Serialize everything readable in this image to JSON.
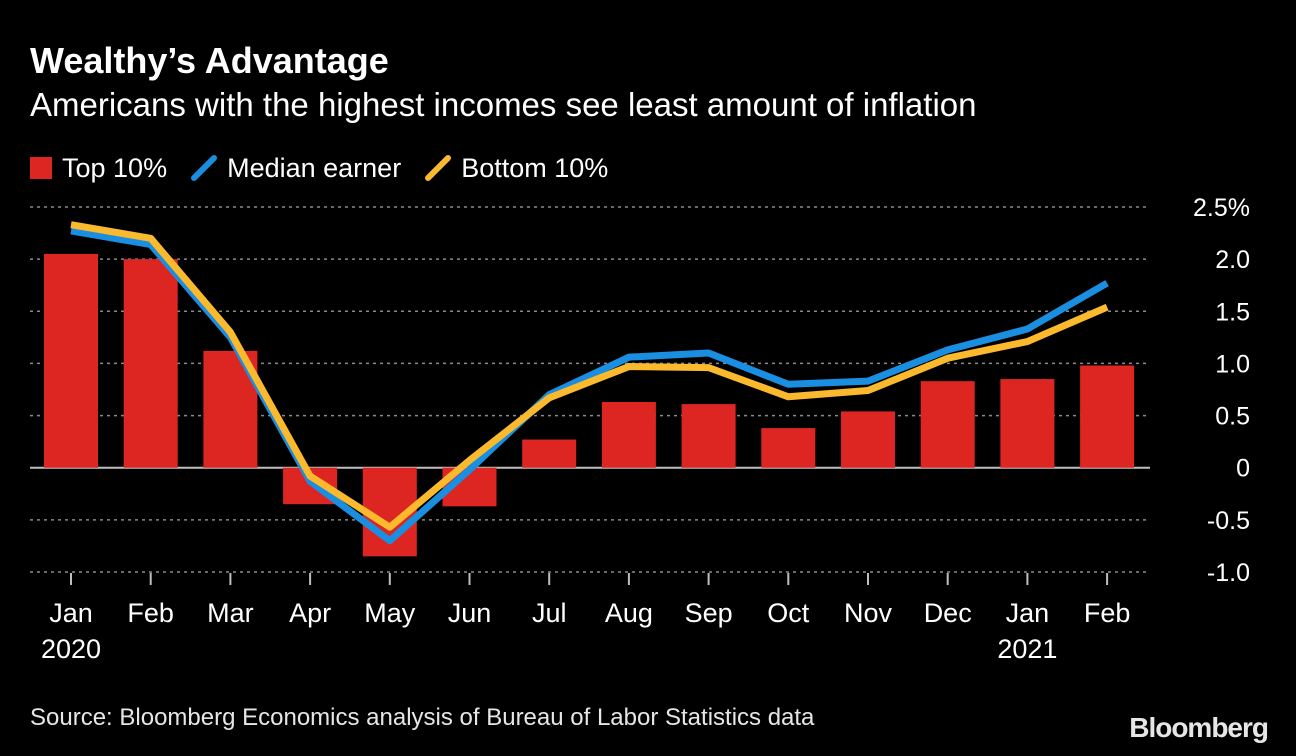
{
  "title": "Wealthy’s Advantage",
  "subtitle": "Americans with the highest incomes see least amount of inflation",
  "source": "Source: Bloomberg Economics analysis of Bureau of Labor Statistics data",
  "brand": "Bloomberg",
  "colors": {
    "background": "#000000",
    "top10": "#dd2622",
    "median": "#1a8ee0",
    "bottom10": "#fbb92e",
    "grid": "#8a8a8a"
  },
  "legend": [
    {
      "label": "Top 10%",
      "shape": "square",
      "color": "#dd2622"
    },
    {
      "label": "Median earner",
      "shape": "slash",
      "color": "#1a8ee0"
    },
    {
      "label": "Bottom 10%",
      "shape": "slash",
      "color": "#fbb92e"
    }
  ],
  "chart_data": {
    "type": "bar",
    "categories": [
      "Jan",
      "Feb",
      "Mar",
      "Apr",
      "May",
      "Jun",
      "Jul",
      "Aug",
      "Sep",
      "Oct",
      "Nov",
      "Dec",
      "Jan",
      "Feb"
    ],
    "year_labels": [
      "2020",
      "",
      "",
      "",
      "",
      "",
      "",
      "",
      "",
      "",
      "",
      "",
      "2021",
      ""
    ],
    "series": [
      {
        "name": "Top 10%",
        "kind": "bar",
        "color": "#dd2622",
        "values": [
          2.05,
          2.0,
          1.12,
          -0.35,
          -0.85,
          -0.37,
          0.27,
          0.63,
          0.61,
          0.38,
          0.54,
          0.83,
          0.85,
          0.98
        ]
      },
      {
        "name": "Median earner",
        "kind": "line",
        "color": "#1a8ee0",
        "values": [
          2.27,
          2.14,
          1.25,
          -0.13,
          -0.7,
          -0.02,
          0.7,
          1.06,
          1.1,
          0.8,
          0.83,
          1.13,
          1.33,
          1.77
        ]
      },
      {
        "name": "Bottom 10%",
        "kind": "line",
        "color": "#fbb92e",
        "values": [
          2.33,
          2.2,
          1.3,
          -0.08,
          -0.57,
          0.07,
          0.67,
          0.97,
          0.96,
          0.68,
          0.74,
          1.05,
          1.21,
          1.54
        ]
      }
    ],
    "yticks": [
      2.5,
      2.0,
      1.5,
      1.0,
      0.5,
      0,
      -0.5,
      -1.0
    ],
    "ytick_labels": [
      "2.5%",
      "2.0",
      "1.5",
      "1.0",
      "0.5",
      "0",
      "-0.5",
      "-1.0"
    ],
    "ylim": [
      -1.0,
      2.5
    ],
    "xlabel": "",
    "ylabel": "",
    "grid": true,
    "legend_position": "top-left",
    "yaxis_position": "right"
  }
}
